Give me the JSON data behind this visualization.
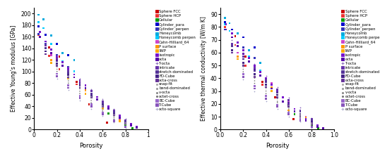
{
  "legend_entries": [
    {
      "label": "Sphere FCC",
      "color": "#cc0000",
      "marker": "s"
    },
    {
      "label": "Sphere HCP",
      "color": "#ee3333",
      "marker": "s"
    },
    {
      "label": "Cellular",
      "color": "#009900",
      "marker": "s"
    },
    {
      "label": "Cylinder_para",
      "color": "#0000cc",
      "marker": "s"
    },
    {
      "label": "Cylinder_perpen",
      "color": "#3333bb",
      "marker": "s"
    },
    {
      "label": "Honeycomb",
      "color": "#00aadd",
      "marker": "s"
    },
    {
      "label": "Honeycomb perpen",
      "color": "#00ccff",
      "marker": "s"
    },
    {
      "label": "Cahn-Hilliard_64",
      "color": "#cc44cc",
      "marker": "s"
    },
    {
      "label": "P surface",
      "color": "#ff9900",
      "marker": "s"
    },
    {
      "label": "IWP",
      "color": "#ffaa00",
      "marker": "s"
    },
    {
      "label": "isotropic",
      "color": "#7711cc",
      "marker": "s"
    },
    {
      "label": "octa",
      "color": "#5500aa",
      "marker": "s"
    },
    {
      "label": "T-octa",
      "color": "#8866bb",
      "marker": "+"
    },
    {
      "label": "intricate",
      "color": "#6633aa",
      "marker": "s"
    },
    {
      "label": "stretch-dominated",
      "color": "#553399",
      "marker": "s"
    },
    {
      "label": "FD-Cube",
      "color": "#442288",
      "marker": "s"
    },
    {
      "label": "octa-cross",
      "color": "#663399",
      "marker": "s"
    },
    {
      "label": "snap-fit",
      "color": "#aaaaaa",
      "marker": "."
    },
    {
      "label": "bend-dominated",
      "color": "#999999",
      "marker": "."
    },
    {
      "label": "v-octa",
      "color": "#888888",
      "marker": "."
    },
    {
      "label": "octet-cross",
      "color": "#777777",
      "marker": "."
    },
    {
      "label": "BC-Cube",
      "color": "#9966cc",
      "marker": "s"
    },
    {
      "label": "T-Cube",
      "color": "#8855bb",
      "marker": "s"
    },
    {
      "label": "octo-square",
      "color": "#aaaacc",
      "marker": "+"
    }
  ],
  "left_ylabel": "Effective Young's modulus [GPa]",
  "right_ylabel": "Effective thermal conductivity [W/m K]",
  "xlabel": "Porosity",
  "left_ylim": [
    0,
    210
  ],
  "right_ylim": [
    0,
    95
  ],
  "left_yticks": [
    0.0,
    20.0,
    40.0,
    60.0,
    80.0,
    100.0,
    120.0,
    140.0,
    160.0,
    180.0,
    200.0
  ],
  "right_yticks": [
    0.0,
    10.0,
    20.0,
    30.0,
    40.0,
    50.0,
    60.0,
    70.0,
    80.0,
    90.0
  ],
  "xlim": [
    0,
    1
  ],
  "xticks": [
    0,
    0.2,
    0.4,
    0.6,
    0.8,
    1
  ],
  "left_data": {
    "Sphere FCC": {
      "x": [
        0.04,
        0.13,
        0.22,
        0.37,
        0.48,
        0.64
      ],
      "y": [
        178,
        142,
        126,
        82,
        43,
        12
      ]
    },
    "Sphere HCP": {
      "x": [
        0.04,
        0.13,
        0.22,
        0.37
      ],
      "y": [
        163,
        127,
        104,
        78
      ]
    },
    "Cellular": {
      "x": [
        0.5,
        0.65,
        0.8,
        0.86
      ],
      "y": [
        42,
        28,
        7,
        2
      ]
    },
    "Cylinder_para": {
      "x": [
        0.04,
        0.1,
        0.2,
        0.3
      ],
      "y": [
        178,
        163,
        148,
        128
      ]
    },
    "Cylinder_perpen": {
      "x": [
        0.04,
        0.1,
        0.2,
        0.3
      ],
      "y": [
        165,
        148,
        128,
        108
      ]
    },
    "Honeycomb": {
      "x": [
        0.04,
        0.08,
        0.15,
        0.25,
        0.35
      ],
      "y": [
        198,
        190,
        162,
        132,
        120
      ]
    },
    "Honeycomb perpen": {
      "x": [
        0.04,
        0.08,
        0.15,
        0.25,
        0.35
      ],
      "y": [
        185,
        175,
        148,
        118,
        100
      ]
    },
    "Cahn-Hilliard_64": {
      "x": [
        0.15,
        0.3,
        0.45,
        0.6,
        0.75
      ],
      "y": [
        128,
        100,
        72,
        44,
        18
      ]
    },
    "P surface": {
      "x": [
        0.15,
        0.3,
        0.45,
        0.6,
        0.75
      ],
      "y": [
        120,
        95,
        68,
        40,
        16
      ]
    },
    "IWP": {
      "x": [
        0.15,
        0.3,
        0.45,
        0.6,
        0.75
      ],
      "y": [
        115,
        88,
        62,
        36,
        14
      ]
    },
    "isotropic": {
      "x": [
        0.05,
        0.1,
        0.15,
        0.2,
        0.25,
        0.3,
        0.35,
        0.4,
        0.45,
        0.5,
        0.55,
        0.6,
        0.65,
        0.7,
        0.75,
        0.8,
        0.85,
        0.9
      ],
      "y": [
        168,
        152,
        138,
        126,
        116,
        105,
        95,
        85,
        76,
        66,
        56,
        48,
        40,
        32,
        24,
        16,
        10,
        5
      ]
    },
    "octa": {
      "x": [
        0.05,
        0.1,
        0.15,
        0.2,
        0.25,
        0.3,
        0.35,
        0.4,
        0.45,
        0.5,
        0.55,
        0.6,
        0.65,
        0.7,
        0.75,
        0.8,
        0.85,
        0.9
      ],
      "y": [
        160,
        145,
        132,
        120,
        110,
        100,
        90,
        80,
        71,
        62,
        52,
        44,
        36,
        28,
        20,
        13,
        7,
        3
      ]
    },
    "T-octa": {
      "x": [
        0.1,
        0.2,
        0.3,
        0.4,
        0.5,
        0.6,
        0.7,
        0.8
      ],
      "y": [
        150,
        128,
        108,
        88,
        70,
        52,
        35,
        18
      ]
    },
    "intricate": {
      "x": [
        0.1,
        0.2,
        0.3,
        0.4,
        0.5,
        0.6,
        0.7,
        0.8
      ],
      "y": [
        145,
        122,
        102,
        83,
        66,
        48,
        32,
        16
      ]
    },
    "stretch-dominated": {
      "x": [
        0.1,
        0.2,
        0.3,
        0.4,
        0.5,
        0.6,
        0.7,
        0.8
      ],
      "y": [
        140,
        118,
        98,
        79,
        62,
        45,
        30,
        14
      ]
    },
    "FD-Cube": {
      "x": [
        0.1,
        0.2,
        0.3,
        0.4,
        0.5,
        0.6,
        0.7,
        0.8
      ],
      "y": [
        135,
        114,
        94,
        76,
        58,
        42,
        27,
        12
      ]
    },
    "octa-cross": {
      "x": [
        0.1,
        0.2,
        0.3,
        0.4,
        0.5,
        0.6,
        0.7,
        0.8
      ],
      "y": [
        130,
        110,
        90,
        72,
        55,
        39,
        25,
        11
      ]
    },
    "snap-fit": {
      "x": [
        0.2,
        0.3,
        0.4,
        0.5,
        0.6,
        0.7,
        0.8
      ],
      "y": [
        112,
        92,
        74,
        57,
        41,
        26,
        12
      ]
    },
    "bend-dominated": {
      "x": [
        0.2,
        0.3,
        0.4,
        0.5,
        0.6,
        0.7,
        0.8
      ],
      "y": [
        108,
        88,
        70,
        54,
        38,
        23,
        10
      ]
    },
    "v-octa": {
      "x": [
        0.2,
        0.3,
        0.4,
        0.5,
        0.6,
        0.7,
        0.8
      ],
      "y": [
        104,
        84,
        66,
        50,
        35,
        21,
        8
      ]
    },
    "octet-cross": {
      "x": [
        0.2,
        0.3,
        0.4,
        0.5,
        0.6,
        0.7,
        0.8
      ],
      "y": [
        100,
        80,
        62,
        46,
        32,
        18,
        6
      ]
    },
    "BC-Cube": {
      "x": [
        0.2,
        0.3,
        0.4,
        0.5,
        0.6,
        0.7,
        0.8
      ],
      "y": [
        96,
        76,
        58,
        43,
        29,
        16,
        5
      ]
    },
    "T-Cube": {
      "x": [
        0.2,
        0.3,
        0.4,
        0.5,
        0.6,
        0.7,
        0.8
      ],
      "y": [
        92,
        72,
        54,
        40,
        26,
        14,
        4
      ]
    },
    "octo-square": {
      "x": [
        0.2,
        0.3,
        0.4,
        0.5,
        0.6,
        0.7,
        0.8
      ],
      "y": [
        88,
        68,
        50,
        36,
        23,
        12,
        3
      ]
    }
  },
  "right_data": {
    "Sphere FCC": {
      "x": [
        0.04,
        0.13,
        0.22,
        0.37,
        0.48,
        0.64
      ],
      "y": [
        84,
        73,
        57,
        37,
        25,
        8
      ]
    },
    "Sphere HCP": {
      "x": [
        0.04,
        0.13,
        0.22,
        0.37
      ],
      "y": [
        80,
        66,
        50,
        35
      ]
    },
    "Cellular": {
      "x": [
        0.5,
        0.65,
        0.8,
        0.86
      ],
      "y": [
        18,
        12,
        3,
        1
      ]
    },
    "Cylinder_para": {
      "x": [
        0.04,
        0.1,
        0.2,
        0.3
      ],
      "y": [
        84,
        78,
        72,
        64
      ]
    },
    "Cylinder_perpen": {
      "x": [
        0.04,
        0.1,
        0.2,
        0.3
      ],
      "y": [
        78,
        72,
        64,
        56
      ]
    },
    "Honeycomb": {
      "x": [
        0.04,
        0.08,
        0.15,
        0.25,
        0.35
      ],
      "y": [
        87,
        83,
        75,
        62,
        52
      ]
    },
    "Honeycomb perpen": {
      "x": [
        0.04,
        0.08,
        0.15,
        0.25,
        0.35
      ],
      "y": [
        82,
        77,
        68,
        57,
        46
      ]
    },
    "Cahn-Hilliard_64": {
      "x": [
        0.15,
        0.3,
        0.45,
        0.6,
        0.75
      ],
      "y": [
        60,
        49,
        36,
        22,
        10
      ]
    },
    "P surface": {
      "x": [
        0.15,
        0.3,
        0.45,
        0.6,
        0.75,
        0.6
      ],
      "y": [
        57,
        46,
        33,
        20,
        9,
        15
      ]
    },
    "IWP": {
      "x": [
        0.15,
        0.3,
        0.45,
        0.6,
        0.75
      ],
      "y": [
        55,
        43,
        30,
        18,
        8
      ]
    },
    "isotropic": {
      "x": [
        0.05,
        0.1,
        0.15,
        0.2,
        0.25,
        0.3,
        0.35,
        0.4,
        0.45,
        0.5,
        0.55,
        0.6,
        0.65,
        0.7,
        0.75,
        0.8,
        0.85,
        0.9
      ],
      "y": [
        82,
        75,
        68,
        62,
        56,
        50,
        45,
        40,
        35,
        30,
        25,
        20,
        16,
        12,
        8,
        5,
        3,
        1
      ]
    },
    "octa": {
      "x": [
        0.05,
        0.1,
        0.15,
        0.2,
        0.25,
        0.3,
        0.35,
        0.4,
        0.45,
        0.5,
        0.55,
        0.6,
        0.65,
        0.7,
        0.75,
        0.8,
        0.85,
        0.9
      ],
      "y": [
        78,
        72,
        65,
        59,
        53,
        47,
        42,
        37,
        32,
        27,
        22,
        18,
        14,
        10,
        7,
        4,
        2,
        1
      ]
    },
    "T-octa": {
      "x": [
        0.1,
        0.2,
        0.3,
        0.4,
        0.5,
        0.6,
        0.7,
        0.8
      ],
      "y": [
        70,
        60,
        51,
        42,
        33,
        25,
        17,
        9
      ]
    },
    "intricate": {
      "x": [
        0.1,
        0.2,
        0.3,
        0.4,
        0.5,
        0.6,
        0.7,
        0.8
      ],
      "y": [
        67,
        57,
        48,
        39,
        31,
        23,
        15,
        8
      ]
    },
    "stretch-dominated": {
      "x": [
        0.1,
        0.2,
        0.3,
        0.4,
        0.5,
        0.6,
        0.7,
        0.8
      ],
      "y": [
        65,
        55,
        46,
        37,
        29,
        21,
        14,
        7
      ]
    },
    "FD-Cube": {
      "x": [
        0.1,
        0.2,
        0.3,
        0.4,
        0.5,
        0.6,
        0.7,
        0.8
      ],
      "y": [
        62,
        52,
        43,
        35,
        27,
        19,
        12,
        6
      ]
    },
    "octa-cross": {
      "x": [
        0.1,
        0.2,
        0.3,
        0.4,
        0.5,
        0.6,
        0.7,
        0.8
      ],
      "y": [
        60,
        50,
        41,
        33,
        25,
        18,
        11,
        5
      ]
    },
    "snap-fit": {
      "x": [
        0.2,
        0.3,
        0.4,
        0.5,
        0.6,
        0.7,
        0.8
      ],
      "y": [
        51,
        42,
        34,
        26,
        19,
        12,
        5
      ]
    },
    "bend-dominated": {
      "x": [
        0.2,
        0.3,
        0.4,
        0.5,
        0.6,
        0.7,
        0.8
      ],
      "y": [
        49,
        40,
        32,
        24,
        17,
        11,
        4
      ]
    },
    "v-octa": {
      "x": [
        0.2,
        0.3,
        0.4,
        0.5,
        0.6,
        0.7,
        0.8
      ],
      "y": [
        47,
        38,
        30,
        22,
        16,
        10,
        4
      ]
    },
    "octet-cross": {
      "x": [
        0.2,
        0.3,
        0.4,
        0.5,
        0.6,
        0.7,
        0.8
      ],
      "y": [
        45,
        36,
        28,
        21,
        14,
        9,
        3
      ]
    },
    "BC-Cube": {
      "x": [
        0.2,
        0.3,
        0.4,
        0.5,
        0.6,
        0.7,
        0.8
      ],
      "y": [
        43,
        34,
        26,
        19,
        13,
        8,
        2
      ]
    },
    "T-Cube": {
      "x": [
        0.2,
        0.3,
        0.4,
        0.5,
        0.6,
        0.7,
        0.8
      ],
      "y": [
        41,
        32,
        24,
        18,
        12,
        7,
        2
      ]
    },
    "octo-square": {
      "x": [
        0.2,
        0.3,
        0.4,
        0.5,
        0.6,
        0.7,
        0.8
      ],
      "y": [
        39,
        30,
        22,
        16,
        10,
        6,
        1
      ]
    }
  }
}
